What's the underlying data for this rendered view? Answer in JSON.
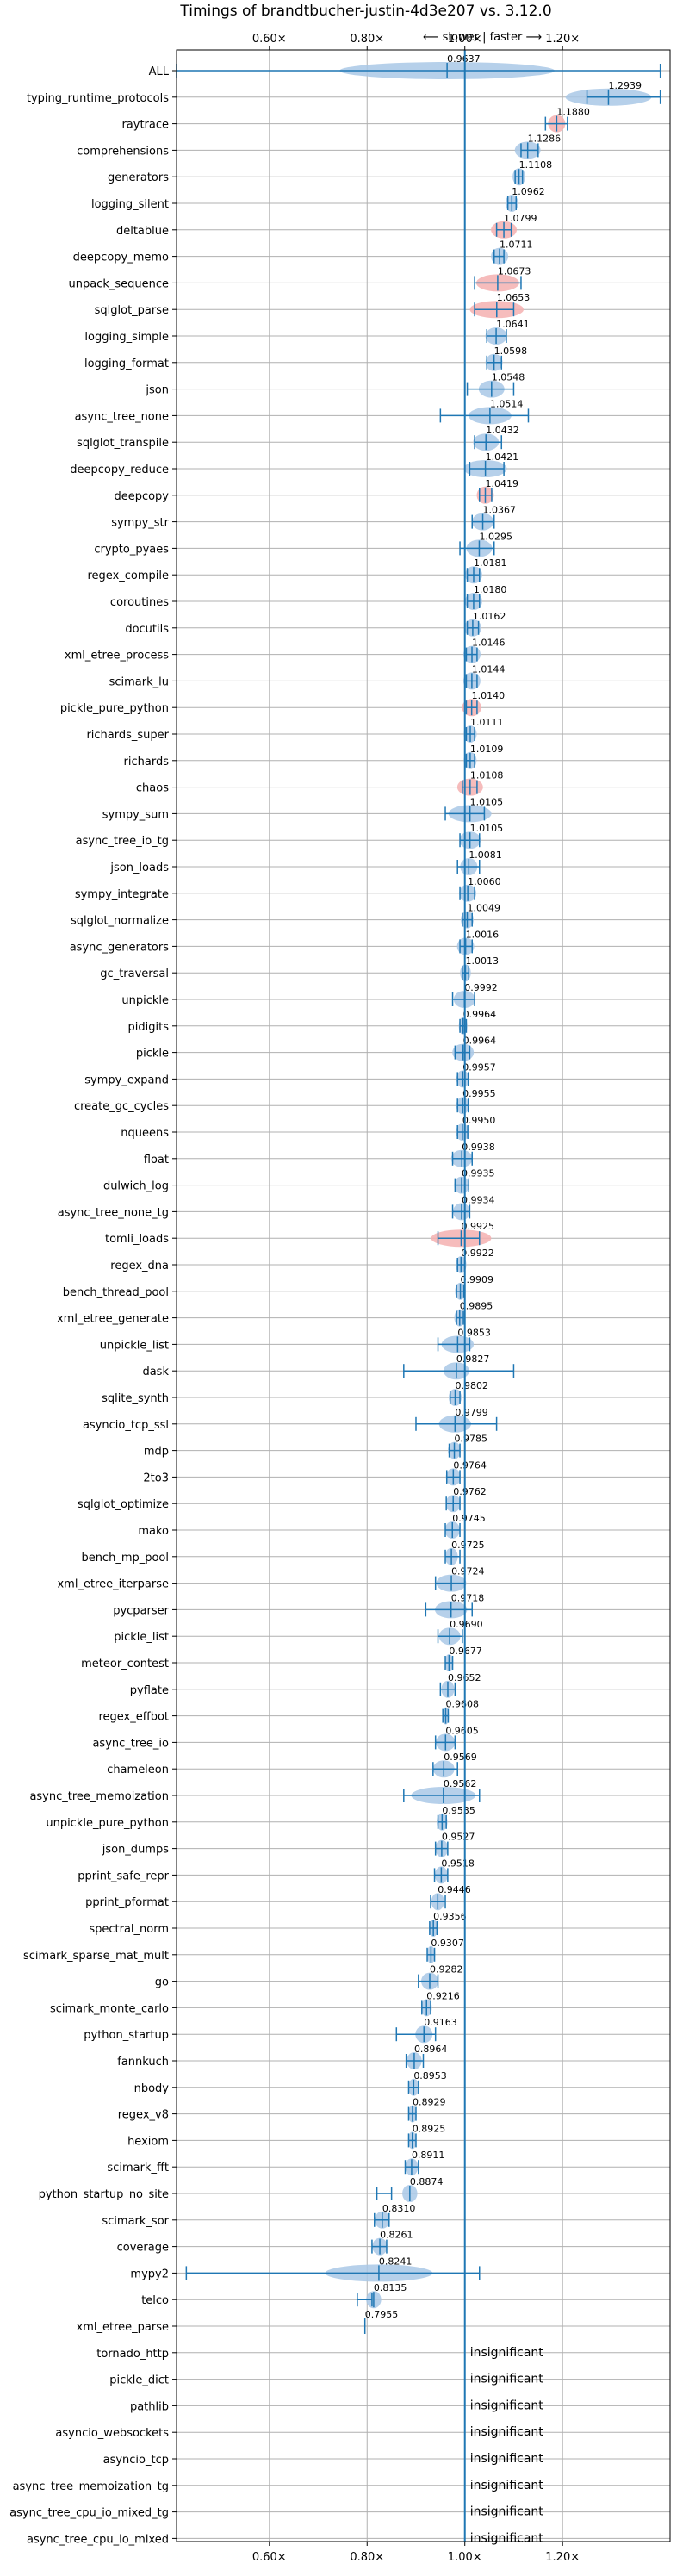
{
  "chart_data": {
    "type": "violin",
    "title": "Timings of brandtbucher-justin-4d3e207 vs. 3.12.0",
    "direction_label": "⟵ slower | faster ⟶",
    "xlim": [
      0.41,
      1.42
    ],
    "xticks": [
      0.6,
      0.8,
      1.0,
      1.2
    ],
    "xtick_labels": [
      "0.60×",
      "0.80×",
      "1.00×",
      "1.20×"
    ],
    "reference_x": 1.0,
    "grid": true,
    "colors": {
      "violin": "#a9c8e6",
      "violin_highlight": "#f4b0b0",
      "line": "#1f77b4",
      "grid": "#b0b0b0"
    },
    "benchmarks": [
      {
        "name": "ALL",
        "value": 0.9637,
        "label": "0.9637",
        "min": 0.41,
        "max": 1.4,
        "spread": 0.1,
        "highlight": false
      },
      {
        "name": "typing_runtime_protocols",
        "value": 1.2939,
        "label": "1.2939",
        "min": 1.25,
        "max": 1.4,
        "spread": 0.04,
        "highlight": false
      },
      {
        "name": "raytrace",
        "value": 1.188,
        "label": "1.1880",
        "min": 1.165,
        "max": 1.21,
        "spread": 0.008,
        "highlight": true
      },
      {
        "name": "comprehensions",
        "value": 1.1286,
        "label": "1.1286",
        "min": 1.115,
        "max": 1.15,
        "spread": 0.012,
        "highlight": false
      },
      {
        "name": "generators",
        "value": 1.1108,
        "label": "1.1108",
        "min": 1.103,
        "max": 1.118,
        "spread": 0.006,
        "highlight": false
      },
      {
        "name": "logging_silent",
        "value": 1.0962,
        "label": "1.0962",
        "min": 1.088,
        "max": 1.105,
        "spread": 0.006,
        "highlight": false
      },
      {
        "name": "deltablue",
        "value": 1.0799,
        "label": "1.0799",
        "min": 1.065,
        "max": 1.095,
        "spread": 0.012,
        "highlight": true
      },
      {
        "name": "deepcopy_memo",
        "value": 1.0711,
        "label": "1.0711",
        "min": 1.06,
        "max": 1.08,
        "spread": 0.008,
        "highlight": false
      },
      {
        "name": "unpack_sequence",
        "value": 1.0673,
        "label": "1.0673",
        "min": 1.02,
        "max": 1.115,
        "spread": 0.02,
        "highlight": true
      },
      {
        "name": "sqlglot_parse",
        "value": 1.0653,
        "label": "1.0653",
        "min": 1.02,
        "max": 1.1,
        "spread": 0.025,
        "highlight": true
      },
      {
        "name": "logging_simple",
        "value": 1.0641,
        "label": "1.0641",
        "min": 1.045,
        "max": 1.085,
        "spread": 0.01,
        "highlight": false
      },
      {
        "name": "logging_format",
        "value": 1.0598,
        "label": "1.0598",
        "min": 1.045,
        "max": 1.075,
        "spread": 0.008,
        "highlight": false
      },
      {
        "name": "json",
        "value": 1.0548,
        "label": "1.0548",
        "min": 1.005,
        "max": 1.1,
        "spread": 0.012,
        "highlight": false
      },
      {
        "name": "async_tree_none",
        "value": 1.0514,
        "label": "1.0514",
        "min": 0.95,
        "max": 1.13,
        "spread": 0.02,
        "highlight": false
      },
      {
        "name": "sqlglot_transpile",
        "value": 1.0432,
        "label": "1.0432",
        "min": 1.02,
        "max": 1.075,
        "spread": 0.012,
        "highlight": false
      },
      {
        "name": "deepcopy_reduce",
        "value": 1.0421,
        "label": "1.0421",
        "min": 1.01,
        "max": 1.08,
        "spread": 0.02,
        "highlight": false
      },
      {
        "name": "deepcopy",
        "value": 1.0419,
        "label": "1.0419",
        "min": 1.03,
        "max": 1.055,
        "spread": 0.008,
        "highlight": true
      },
      {
        "name": "sympy_str",
        "value": 1.0367,
        "label": "1.0367",
        "min": 1.015,
        "max": 1.06,
        "spread": 0.01,
        "highlight": false
      },
      {
        "name": "crypto_pyaes",
        "value": 1.0295,
        "label": "1.0295",
        "min": 0.99,
        "max": 1.06,
        "spread": 0.012,
        "highlight": false
      },
      {
        "name": "regex_compile",
        "value": 1.0181,
        "label": "1.0181",
        "min": 1.005,
        "max": 1.03,
        "spread": 0.008,
        "highlight": false
      },
      {
        "name": "coroutines",
        "value": 1.018,
        "label": "1.0180",
        "min": 1.005,
        "max": 1.03,
        "spread": 0.008,
        "highlight": false
      },
      {
        "name": "docutils",
        "value": 1.0162,
        "label": "1.0162",
        "min": 1.005,
        "max": 1.028,
        "spread": 0.008,
        "highlight": false
      },
      {
        "name": "xml_etree_process",
        "value": 1.0146,
        "label": "1.0146",
        "min": 1.003,
        "max": 1.025,
        "spread": 0.008,
        "highlight": false
      },
      {
        "name": "scimark_lu",
        "value": 1.0144,
        "label": "1.0144",
        "min": 1.003,
        "max": 1.025,
        "spread": 0.008,
        "highlight": false
      },
      {
        "name": "pickle_pure_python",
        "value": 1.014,
        "label": "1.0140",
        "min": 1.003,
        "max": 1.025,
        "spread": 0.009,
        "highlight": true
      },
      {
        "name": "richards_super",
        "value": 1.0111,
        "label": "1.0111",
        "min": 1.003,
        "max": 1.02,
        "spread": 0.006,
        "highlight": false
      },
      {
        "name": "richards",
        "value": 1.0109,
        "label": "1.0109",
        "min": 1.003,
        "max": 1.02,
        "spread": 0.006,
        "highlight": false
      },
      {
        "name": "chaos",
        "value": 1.0108,
        "label": "1.0108",
        "min": 0.995,
        "max": 1.025,
        "spread": 0.012,
        "highlight": true
      },
      {
        "name": "sympy_sum",
        "value": 1.0105,
        "label": "1.0105",
        "min": 0.96,
        "max": 1.04,
        "spread": 0.02,
        "highlight": false
      },
      {
        "name": "async_tree_io_tg",
        "value": 1.0105,
        "label": "1.0105",
        "min": 0.99,
        "max": 1.03,
        "spread": 0.01,
        "highlight": false
      },
      {
        "name": "json_loads",
        "value": 1.0081,
        "label": "1.0081",
        "min": 0.985,
        "max": 1.03,
        "spread": 0.008,
        "highlight": false
      },
      {
        "name": "sympy_integrate",
        "value": 1.006,
        "label": "1.0060",
        "min": 0.99,
        "max": 1.02,
        "spread": 0.008,
        "highlight": false
      },
      {
        "name": "sqlglot_normalize",
        "value": 1.0049,
        "label": "1.0049",
        "min": 0.995,
        "max": 1.015,
        "spread": 0.006,
        "highlight": false
      },
      {
        "name": "async_generators",
        "value": 1.0016,
        "label": "1.0016",
        "min": 0.99,
        "max": 1.015,
        "spread": 0.008,
        "highlight": false
      },
      {
        "name": "gc_traversal",
        "value": 1.0013,
        "label": "1.0013",
        "min": 0.995,
        "max": 1.008,
        "spread": 0.005,
        "highlight": false
      },
      {
        "name": "unpickle",
        "value": 0.9992,
        "label": "0.9992",
        "min": 0.975,
        "max": 1.02,
        "spread": 0.01,
        "highlight": false
      },
      {
        "name": "pidigits",
        "value": 0.9964,
        "label": "0.9964",
        "min": 0.99,
        "max": 1.003,
        "spread": 0.004,
        "highlight": false
      },
      {
        "name": "pickle",
        "value": 0.9964,
        "label": "0.9964",
        "min": 0.98,
        "max": 1.01,
        "spread": 0.01,
        "highlight": false
      },
      {
        "name": "sympy_expand",
        "value": 0.9957,
        "label": "0.9957",
        "min": 0.985,
        "max": 1.007,
        "spread": 0.006,
        "highlight": false
      },
      {
        "name": "create_gc_cycles",
        "value": 0.9955,
        "label": "0.9955",
        "min": 0.985,
        "max": 1.007,
        "spread": 0.006,
        "highlight": false
      },
      {
        "name": "nqueens",
        "value": 0.995,
        "label": "0.9950",
        "min": 0.985,
        "max": 1.006,
        "spread": 0.006,
        "highlight": false
      },
      {
        "name": "float",
        "value": 0.9938,
        "label": "0.9938",
        "min": 0.975,
        "max": 1.015,
        "spread": 0.01,
        "highlight": false
      },
      {
        "name": "dulwich_log",
        "value": 0.9935,
        "label": "0.9935",
        "min": 0.98,
        "max": 1.008,
        "spread": 0.007,
        "highlight": false
      },
      {
        "name": "async_tree_none_tg",
        "value": 0.9934,
        "label": "0.9934",
        "min": 0.975,
        "max": 1.01,
        "spread": 0.008,
        "highlight": false
      },
      {
        "name": "tomli_loads",
        "value": 0.9925,
        "label": "0.9925",
        "min": 0.945,
        "max": 1.03,
        "spread": 0.028,
        "highlight": true
      },
      {
        "name": "regex_dna",
        "value": 0.9922,
        "label": "0.9922",
        "min": 0.985,
        "max": 1.0,
        "spread": 0.005,
        "highlight": false
      },
      {
        "name": "bench_thread_pool",
        "value": 0.9909,
        "label": "0.9909",
        "min": 0.983,
        "max": 0.998,
        "spread": 0.005,
        "highlight": false
      },
      {
        "name": "xml_etree_generate",
        "value": 0.9895,
        "label": "0.9895",
        "min": 0.983,
        "max": 0.997,
        "spread": 0.005,
        "highlight": false
      },
      {
        "name": "unpickle_list",
        "value": 0.9853,
        "label": "0.9853",
        "min": 0.945,
        "max": 1.01,
        "spread": 0.015,
        "highlight": false
      },
      {
        "name": "dask",
        "value": 0.9827,
        "label": "0.9827",
        "min": 0.875,
        "max": 1.1,
        "spread": 0.012,
        "highlight": false
      },
      {
        "name": "sqlite_synth",
        "value": 0.9802,
        "label": "0.9802",
        "min": 0.97,
        "max": 0.99,
        "spread": 0.006,
        "highlight": false
      },
      {
        "name": "asyncio_tcp_ssl",
        "value": 0.9799,
        "label": "0.9799",
        "min": 0.9,
        "max": 1.065,
        "spread": 0.015,
        "highlight": false
      },
      {
        "name": "mdp",
        "value": 0.9785,
        "label": "0.9785",
        "min": 0.968,
        "max": 0.99,
        "spread": 0.006,
        "highlight": false
      },
      {
        "name": "2to3",
        "value": 0.9764,
        "label": "0.9764",
        "min": 0.963,
        "max": 0.99,
        "spread": 0.007,
        "highlight": false
      },
      {
        "name": "sqlglot_optimize",
        "value": 0.9762,
        "label": "0.9762",
        "min": 0.962,
        "max": 0.99,
        "spread": 0.007,
        "highlight": false
      },
      {
        "name": "mako",
        "value": 0.9745,
        "label": "0.9745",
        "min": 0.96,
        "max": 0.99,
        "spread": 0.007,
        "highlight": false
      },
      {
        "name": "bench_mp_pool",
        "value": 0.9725,
        "label": "0.9725",
        "min": 0.96,
        "max": 0.99,
        "spread": 0.006,
        "highlight": false
      },
      {
        "name": "xml_etree_iterparse",
        "value": 0.9724,
        "label": "0.9724",
        "min": 0.94,
        "max": 1.0,
        "spread": 0.014,
        "highlight": false
      },
      {
        "name": "pycparser",
        "value": 0.9718,
        "label": "0.9718",
        "min": 0.92,
        "max": 1.015,
        "spread": 0.015,
        "highlight": false
      },
      {
        "name": "pickle_list",
        "value": 0.969,
        "label": "0.9690",
        "min": 0.945,
        "max": 0.995,
        "spread": 0.01,
        "highlight": false
      },
      {
        "name": "meteor_contest",
        "value": 0.9677,
        "label": "0.9677",
        "min": 0.96,
        "max": 0.975,
        "spread": 0.004,
        "highlight": false
      },
      {
        "name": "pyflate",
        "value": 0.9652,
        "label": "0.9652",
        "min": 0.95,
        "max": 0.98,
        "spread": 0.006,
        "highlight": false
      },
      {
        "name": "regex_effbot",
        "value": 0.9608,
        "label": "0.9608",
        "min": 0.955,
        "max": 0.966,
        "spread": 0.003,
        "highlight": false
      },
      {
        "name": "async_tree_io",
        "value": 0.9605,
        "label": "0.9605",
        "min": 0.94,
        "max": 0.98,
        "spread": 0.009,
        "highlight": false
      },
      {
        "name": "chameleon",
        "value": 0.9569,
        "label": "0.9569",
        "min": 0.935,
        "max": 0.985,
        "spread": 0.01,
        "highlight": false
      },
      {
        "name": "async_tree_memoization",
        "value": 0.9562,
        "label": "0.9562",
        "min": 0.875,
        "max": 1.03,
        "spread": 0.03,
        "highlight": false
      },
      {
        "name": "unpickle_pure_python",
        "value": 0.9535,
        "label": "0.9535",
        "min": 0.945,
        "max": 0.962,
        "spread": 0.005,
        "highlight": false
      },
      {
        "name": "json_dumps",
        "value": 0.9527,
        "label": "0.9527",
        "min": 0.94,
        "max": 0.965,
        "spread": 0.006,
        "highlight": false
      },
      {
        "name": "pprint_safe_repr",
        "value": 0.9518,
        "label": "0.9518",
        "min": 0.938,
        "max": 0.965,
        "spread": 0.006,
        "highlight": false
      },
      {
        "name": "pprint_pformat",
        "value": 0.9446,
        "label": "0.9446",
        "min": 0.93,
        "max": 0.96,
        "spread": 0.006,
        "highlight": false
      },
      {
        "name": "spectral_norm",
        "value": 0.9356,
        "label": "0.9356",
        "min": 0.928,
        "max": 0.943,
        "spread": 0.004,
        "highlight": false
      },
      {
        "name": "scimark_sparse_mat_mult",
        "value": 0.9307,
        "label": "0.9307",
        "min": 0.923,
        "max": 0.938,
        "spread": 0.004,
        "highlight": false
      },
      {
        "name": "go",
        "value": 0.9282,
        "label": "0.9282",
        "min": 0.905,
        "max": 0.945,
        "spread": 0.008,
        "highlight": false
      },
      {
        "name": "scimark_monte_carlo",
        "value": 0.9216,
        "label": "0.9216",
        "min": 0.912,
        "max": 0.93,
        "spread": 0.005,
        "highlight": false
      },
      {
        "name": "python_startup",
        "value": 0.9163,
        "label": "0.9163",
        "min": 0.86,
        "max": 0.94,
        "spread": 0.008,
        "highlight": false
      },
      {
        "name": "fannkuch",
        "value": 0.8964,
        "label": "0.8964",
        "min": 0.88,
        "max": 0.915,
        "spread": 0.007,
        "highlight": false
      },
      {
        "name": "nbody",
        "value": 0.8953,
        "label": "0.8953",
        "min": 0.885,
        "max": 0.905,
        "spread": 0.005,
        "highlight": false
      },
      {
        "name": "regex_v8",
        "value": 0.8929,
        "label": "0.8929",
        "min": 0.885,
        "max": 0.9,
        "spread": 0.004,
        "highlight": false
      },
      {
        "name": "hexiom",
        "value": 0.8925,
        "label": "0.8925",
        "min": 0.885,
        "max": 0.9,
        "spread": 0.004,
        "highlight": false
      },
      {
        "name": "scimark_fft",
        "value": 0.8911,
        "label": "0.8911",
        "min": 0.878,
        "max": 0.905,
        "spread": 0.006,
        "highlight": false
      },
      {
        "name": "python_startup_no_site",
        "value": 0.8874,
        "label": "0.8874",
        "min": 0.82,
        "max": 0.85,
        "spread": 0.007,
        "highlight": false
      },
      {
        "name": "scimark_sor",
        "value": 0.831,
        "label": "0.8310",
        "min": 0.815,
        "max": 0.845,
        "spread": 0.007,
        "highlight": false
      },
      {
        "name": "coverage",
        "value": 0.8261,
        "label": "0.8261",
        "min": 0.81,
        "max": 0.84,
        "spread": 0.007,
        "highlight": false
      },
      {
        "name": "mypy2",
        "value": 0.8241,
        "label": "0.8241",
        "min": 0.43,
        "max": 1.03,
        "spread": 0.05,
        "highlight": false
      },
      {
        "name": "telco",
        "value": 0.8135,
        "label": "0.8135",
        "min": 0.78,
        "max": 0.81,
        "spread": 0.007,
        "highlight": false
      },
      {
        "name": "xml_etree_parse",
        "value": 0.7955,
        "label": "0.7955",
        "min": null,
        "max": null,
        "spread": 0,
        "highlight": false
      },
      {
        "name": "tornado_http",
        "value": null,
        "label": "insignificant",
        "min": null,
        "max": null,
        "spread": 0,
        "highlight": false
      },
      {
        "name": "pickle_dict",
        "value": null,
        "label": "insignificant",
        "min": null,
        "max": null,
        "spread": 0,
        "highlight": false
      },
      {
        "name": "pathlib",
        "value": null,
        "label": "insignificant",
        "min": null,
        "max": null,
        "spread": 0,
        "highlight": false
      },
      {
        "name": "asyncio_websockets",
        "value": null,
        "label": "insignificant",
        "min": null,
        "max": null,
        "spread": 0,
        "highlight": false
      },
      {
        "name": "asyncio_tcp",
        "value": null,
        "label": "insignificant",
        "min": null,
        "max": null,
        "spread": 0,
        "highlight": false
      },
      {
        "name": "async_tree_memoization_tg",
        "value": null,
        "label": "insignificant",
        "min": null,
        "max": null,
        "spread": 0,
        "highlight": false
      },
      {
        "name": "async_tree_cpu_io_mixed_tg",
        "value": null,
        "label": "insignificant",
        "min": null,
        "max": null,
        "spread": 0,
        "highlight": false
      },
      {
        "name": "async_tree_cpu_io_mixed",
        "value": null,
        "label": "insignificant",
        "min": null,
        "max": null,
        "spread": 0,
        "highlight": false
      }
    ]
  }
}
